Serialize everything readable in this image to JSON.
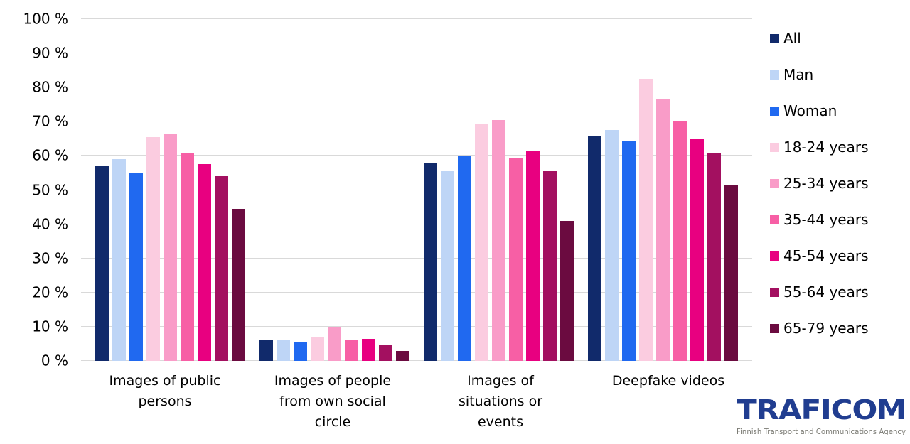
{
  "chart_data": {
    "type": "bar",
    "title": "",
    "xlabel": "",
    "ylabel": "",
    "grid": true,
    "legend_position": "right",
    "categories": [
      "Images of public persons",
      "Images of people from own social circle",
      "Images of situations or events",
      "Deepfake videos"
    ],
    "category_labels": [
      "Images of public\npersons",
      "Images of people\nfrom own social\ncircle",
      "Images of\nsituations or\nevents",
      "Deepfake videos"
    ],
    "series": [
      {
        "name": "All",
        "color": "#112A6B",
        "values": [
          57,
          6,
          58,
          66
        ]
      },
      {
        "name": "Man",
        "color": "#BED5F6",
        "values": [
          59,
          6,
          55.5,
          67.5
        ]
      },
      {
        "name": "Woman",
        "color": "#2069F0",
        "values": [
          55,
          5.5,
          60,
          64.5
        ]
      },
      {
        "name": "18-24 years",
        "color": "#FBCCE0",
        "values": [
          65.5,
          7,
          69.5,
          82.5
        ]
      },
      {
        "name": "25-34 years",
        "color": "#F99CC8",
        "values": [
          66.5,
          10,
          70.5,
          76.5
        ]
      },
      {
        "name": "35-44 years",
        "color": "#F75FA5",
        "values": [
          61,
          6,
          59.5,
          70
        ]
      },
      {
        "name": "45-54 years",
        "color": "#E80080",
        "values": [
          57.5,
          6.5,
          61.5,
          65
        ]
      },
      {
        "name": "55-64 years",
        "color": "#A31060",
        "values": [
          54,
          4.5,
          55.5,
          61
        ]
      },
      {
        "name": "65-79 years",
        "color": "#6B0B40",
        "values": [
          44.5,
          3,
          41,
          51.5
        ]
      }
    ],
    "y_axis": {
      "min": 0,
      "max": 100,
      "step": 10,
      "tick_labels": [
        "100 %",
        "90 %",
        "80 %",
        "70 %",
        "60 %",
        "50 %",
        "40 %",
        "30 %",
        "20 %",
        "10 %",
        "0 %"
      ]
    }
  },
  "logo": {
    "brand": "TRAFICOM",
    "tagline": "Finnish Transport and Communications Agency",
    "brand_color": "#203D90",
    "tagline_color": "#7B7B74"
  }
}
